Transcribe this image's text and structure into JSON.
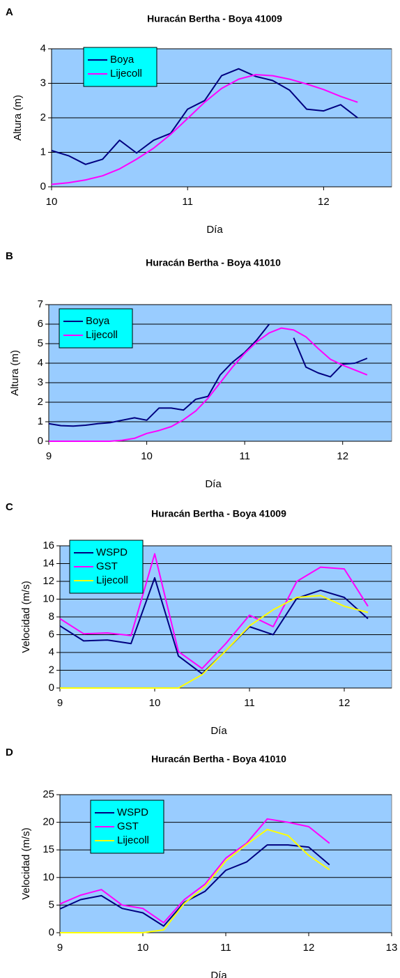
{
  "chart_data": [
    {
      "type": "line",
      "panel_label": "A",
      "title": "Huracán Bertha - Boya 41009",
      "xlabel": "Día",
      "ylabel": "Altura (m)",
      "xlim": [
        10,
        12.5
      ],
      "xticks": [
        10,
        11,
        12
      ],
      "ylim": [
        0,
        4
      ],
      "yticks": [
        0,
        1,
        2,
        3,
        4
      ],
      "grid": true,
      "legend": "upper left",
      "x": [
        10,
        10.125,
        10.25,
        10.375,
        10.5,
        10.625,
        10.75,
        10.875,
        11,
        11.125,
        11.25,
        11.375,
        11.5,
        11.625,
        11.75,
        11.875,
        12,
        12.125,
        12.25
      ],
      "series": [
        {
          "name": "Boya",
          "color": "#000080",
          "values": [
            1.05,
            0.9,
            0.65,
            0.8,
            1.35,
            0.98,
            1.35,
            1.55,
            2.25,
            2.5,
            3.22,
            3.42,
            3.2,
            3.08,
            2.8,
            2.25,
            2.2,
            2.38,
            2.0
          ]
        },
        {
          "name": "Lijecoll",
          "color": "#ff00ff",
          "values": [
            0.07,
            0.12,
            0.2,
            0.32,
            0.52,
            0.8,
            1.12,
            1.52,
            1.98,
            2.45,
            2.85,
            3.12,
            3.25,
            3.22,
            3.12,
            2.98,
            2.82,
            2.62,
            2.45
          ]
        }
      ]
    },
    {
      "type": "line",
      "panel_label": "B",
      "title": "Huracán Bertha - Boya 41010",
      "xlabel": "Día",
      "ylabel": "Altura (m)",
      "xlim": [
        9,
        12.5
      ],
      "xticks": [
        9,
        10,
        11,
        12
      ],
      "ylim": [
        0,
        7
      ],
      "yticks": [
        0,
        1,
        2,
        3,
        4,
        5,
        6,
        7
      ],
      "grid": true,
      "legend": "upper left",
      "x": [
        9,
        9.125,
        9.25,
        9.375,
        9.5,
        9.625,
        9.75,
        9.875,
        10,
        10.125,
        10.25,
        10.375,
        10.5,
        10.625,
        10.75,
        10.875,
        11,
        11.125,
        11.25,
        11.375,
        11.5,
        11.625,
        11.75,
        11.875,
        12,
        12.125,
        12.25
      ],
      "series": [
        {
          "name": "Boya",
          "color": "#000080",
          "values": [
            0.9,
            0.8,
            0.78,
            0.82,
            0.9,
            0.95,
            1.08,
            1.2,
            1.08,
            1.7,
            1.7,
            1.6,
            2.15,
            2.3,
            3.4,
            4.05,
            4.55,
            5.2,
            6.0,
            null,
            5.3,
            3.8,
            3.5,
            3.3,
            3.95,
            4.0,
            4.25
          ]
        },
        {
          "name": "Lijecoll",
          "color": "#ff00ff",
          "values": [
            0,
            0,
            0,
            0,
            0,
            0,
            0.05,
            0.15,
            0.4,
            0.55,
            0.75,
            1.1,
            1.55,
            2.2,
            3.0,
            3.8,
            4.5,
            5.1,
            5.55,
            5.8,
            5.7,
            5.35,
            4.75,
            4.2,
            3.9,
            3.65,
            3.4
          ]
        }
      ]
    },
    {
      "type": "line",
      "panel_label": "C",
      "title": "Huracán Bertha - Boya 41009",
      "xlabel": "Día",
      "ylabel": "Velocidad (m/s)",
      "xlim": [
        9,
        12.5
      ],
      "xticks": [
        9,
        10,
        11,
        12
      ],
      "ylim": [
        0,
        16
      ],
      "yticks": [
        0,
        2,
        4,
        6,
        8,
        10,
        12,
        14,
        16
      ],
      "grid": true,
      "legend": "upper left",
      "x": [
        9,
        9.25,
        9.5,
        9.75,
        10,
        10.25,
        10.5,
        10.75,
        11,
        11.25,
        11.5,
        11.75,
        12,
        12.25
      ],
      "series": [
        {
          "name": "WSPD",
          "color": "#000080",
          "values": [
            7.0,
            5.3,
            5.4,
            5.0,
            12.4,
            3.6,
            1.6,
            4.2,
            6.9,
            6.0,
            10.1,
            11.0,
            10.2,
            7.8
          ]
        },
        {
          "name": "GST",
          "color": "#ff00ff",
          "values": [
            7.8,
            6.1,
            6.2,
            5.9,
            15.1,
            4.1,
            2.2,
            5.0,
            8.2,
            6.9,
            12.0,
            13.6,
            13.4,
            9.2
          ]
        },
        {
          "name": "Lijecoll",
          "color": "#ffff00",
          "values": [
            0,
            0,
            0,
            0,
            0,
            0,
            1.5,
            4.2,
            7.0,
            8.8,
            10.2,
            10.4,
            9.2,
            8.5
          ]
        }
      ]
    },
    {
      "type": "line",
      "panel_label": "D",
      "title": "Huracán Bertha - Boya 41010",
      "xlabel": "Día",
      "ylabel": "Velocidad (m/s)",
      "xlim": [
        9,
        13
      ],
      "xticks": [
        9,
        10,
        11,
        12,
        13
      ],
      "ylim": [
        0,
        25
      ],
      "yticks": [
        0,
        5,
        10,
        15,
        20,
        25
      ],
      "grid": true,
      "legend": "upper left",
      "x": [
        9,
        9.25,
        9.5,
        9.75,
        10,
        10.25,
        10.5,
        10.75,
        11,
        11.25,
        11.5,
        11.75,
        12,
        12.25
      ],
      "series": [
        {
          "name": "WSPD",
          "color": "#000080",
          "values": [
            4.3,
            6.0,
            6.7,
            4.4,
            3.6,
            1.2,
            5.5,
            7.5,
            11.3,
            12.8,
            15.9,
            15.9,
            15.5,
            12.3
          ]
        },
        {
          "name": "GST",
          "color": "#ff00ff",
          "values": [
            5.2,
            6.8,
            7.8,
            5.0,
            4.4,
            1.8,
            6.0,
            8.8,
            13.5,
            16.2,
            20.6,
            20.0,
            19.2,
            16.2
          ]
        },
        {
          "name": "Lijecoll",
          "color": "#ffff00",
          "values": [
            0,
            0,
            0,
            0,
            0,
            0.5,
            5.3,
            8.4,
            13.0,
            16.0,
            18.7,
            17.6,
            14.0,
            11.4
          ]
        }
      ]
    }
  ]
}
